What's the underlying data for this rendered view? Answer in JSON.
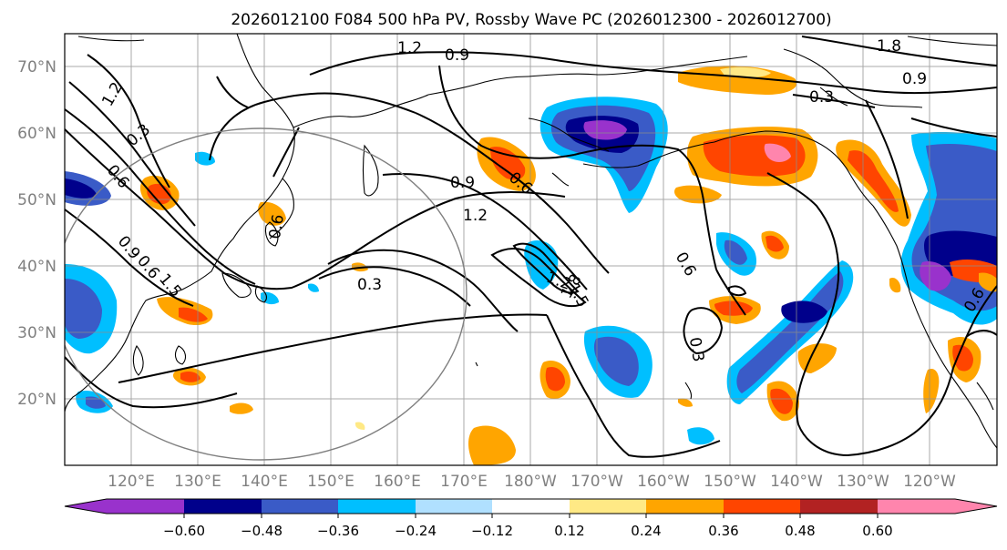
{
  "title": "2026012100 F084 500 hPa PV, Rossby Wave PC (2026012300 - 2026012700)",
  "map": {
    "lat_ticks": [
      "70°N",
      "60°N",
      "50°N",
      "40°N",
      "30°N",
      "20°N"
    ],
    "lon_ticks": [
      "120°E",
      "130°E",
      "140°E",
      "150°E",
      "160°E",
      "170°E",
      "180°W",
      "170°W",
      "160°W",
      "150°W",
      "140°W",
      "130°W",
      "120°W"
    ],
    "contour_labels": [
      "1.2",
      "0.9",
      "1.8",
      "0.9",
      "0.3",
      "1.2",
      "0.3",
      "0.6",
      "0.9",
      "0.6",
      "0.9",
      "0.6",
      "1.2",
      "0.6",
      "0.3",
      "1.2",
      "1.5",
      "1.8",
      "0.3",
      "0.6",
      "0.6",
      "1.5"
    ]
  },
  "colorbar": {
    "tick_labels": [
      "−0.60",
      "−0.48",
      "−0.36",
      "−0.24",
      "−0.12",
      "0.12",
      "0.24",
      "0.36",
      "0.48",
      "0.60"
    ],
    "colors": [
      "#9932cc",
      "#00008b",
      "#3a5bc7",
      "#00bfff",
      "#b0e0ff",
      "#ffffff",
      "#ffe985",
      "#ffa500",
      "#ff4500",
      "#b22222",
      "#ff85ad"
    ]
  }
}
